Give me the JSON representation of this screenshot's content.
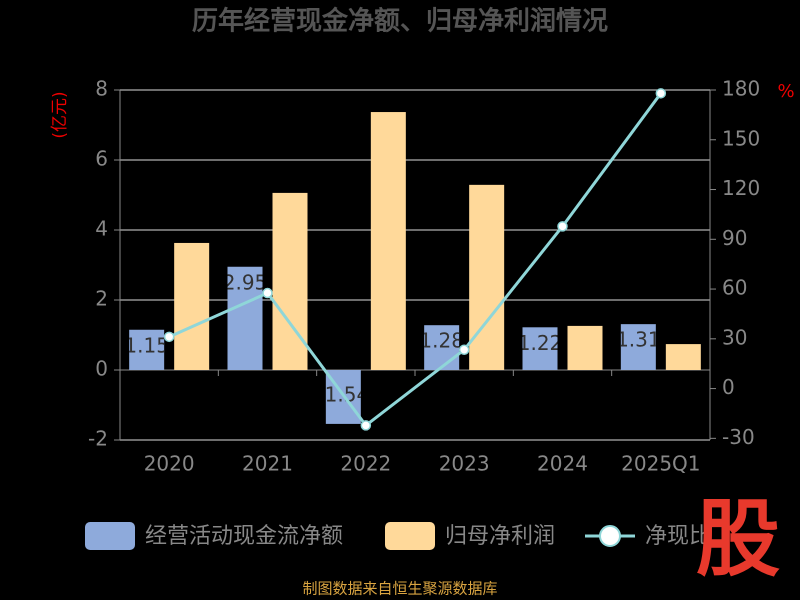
{
  "chart_data": {
    "type": "bar_line",
    "title": "历年经营现金净额、归母净利润情况",
    "y_label": "(亿元)",
    "y2_label": "%",
    "source": "制图数据来自恒生聚源数据库",
    "logo": "股",
    "categories": [
      "2020",
      "2021",
      "2022",
      "2023",
      "2024",
      "2025Q1"
    ],
    "series": [
      {
        "name": "经营活动现金流净额",
        "type": "bar",
        "color": "#8eaadb",
        "values": [
          1.15,
          2.95,
          -1.54,
          1.28,
          1.22,
          1.31
        ],
        "value_labels": [
          "1.15",
          "2.95",
          "-1.54",
          "1.28",
          "1.22",
          "1.31"
        ]
      },
      {
        "name": "归母净利润",
        "type": "bar",
        "color": "#ffd99a",
        "values": [
          3.63,
          5.06,
          7.37,
          5.29,
          1.26,
          0.74
        ]
      },
      {
        "name": "净现比",
        "type": "line",
        "axis": "y2",
        "color": "#8fd6d8",
        "values": [
          31.2,
          57.6,
          -22.2,
          23.4,
          97.8,
          178
        ]
      }
    ],
    "ylim": [
      -2,
      8
    ],
    "yticks": [
      -2,
      0,
      2,
      4,
      6,
      8
    ],
    "y2lim": [
      -31,
      180
    ],
    "y2ticks": [
      -30,
      0,
      30,
      60,
      90,
      120,
      150,
      180
    ],
    "grid": true
  }
}
